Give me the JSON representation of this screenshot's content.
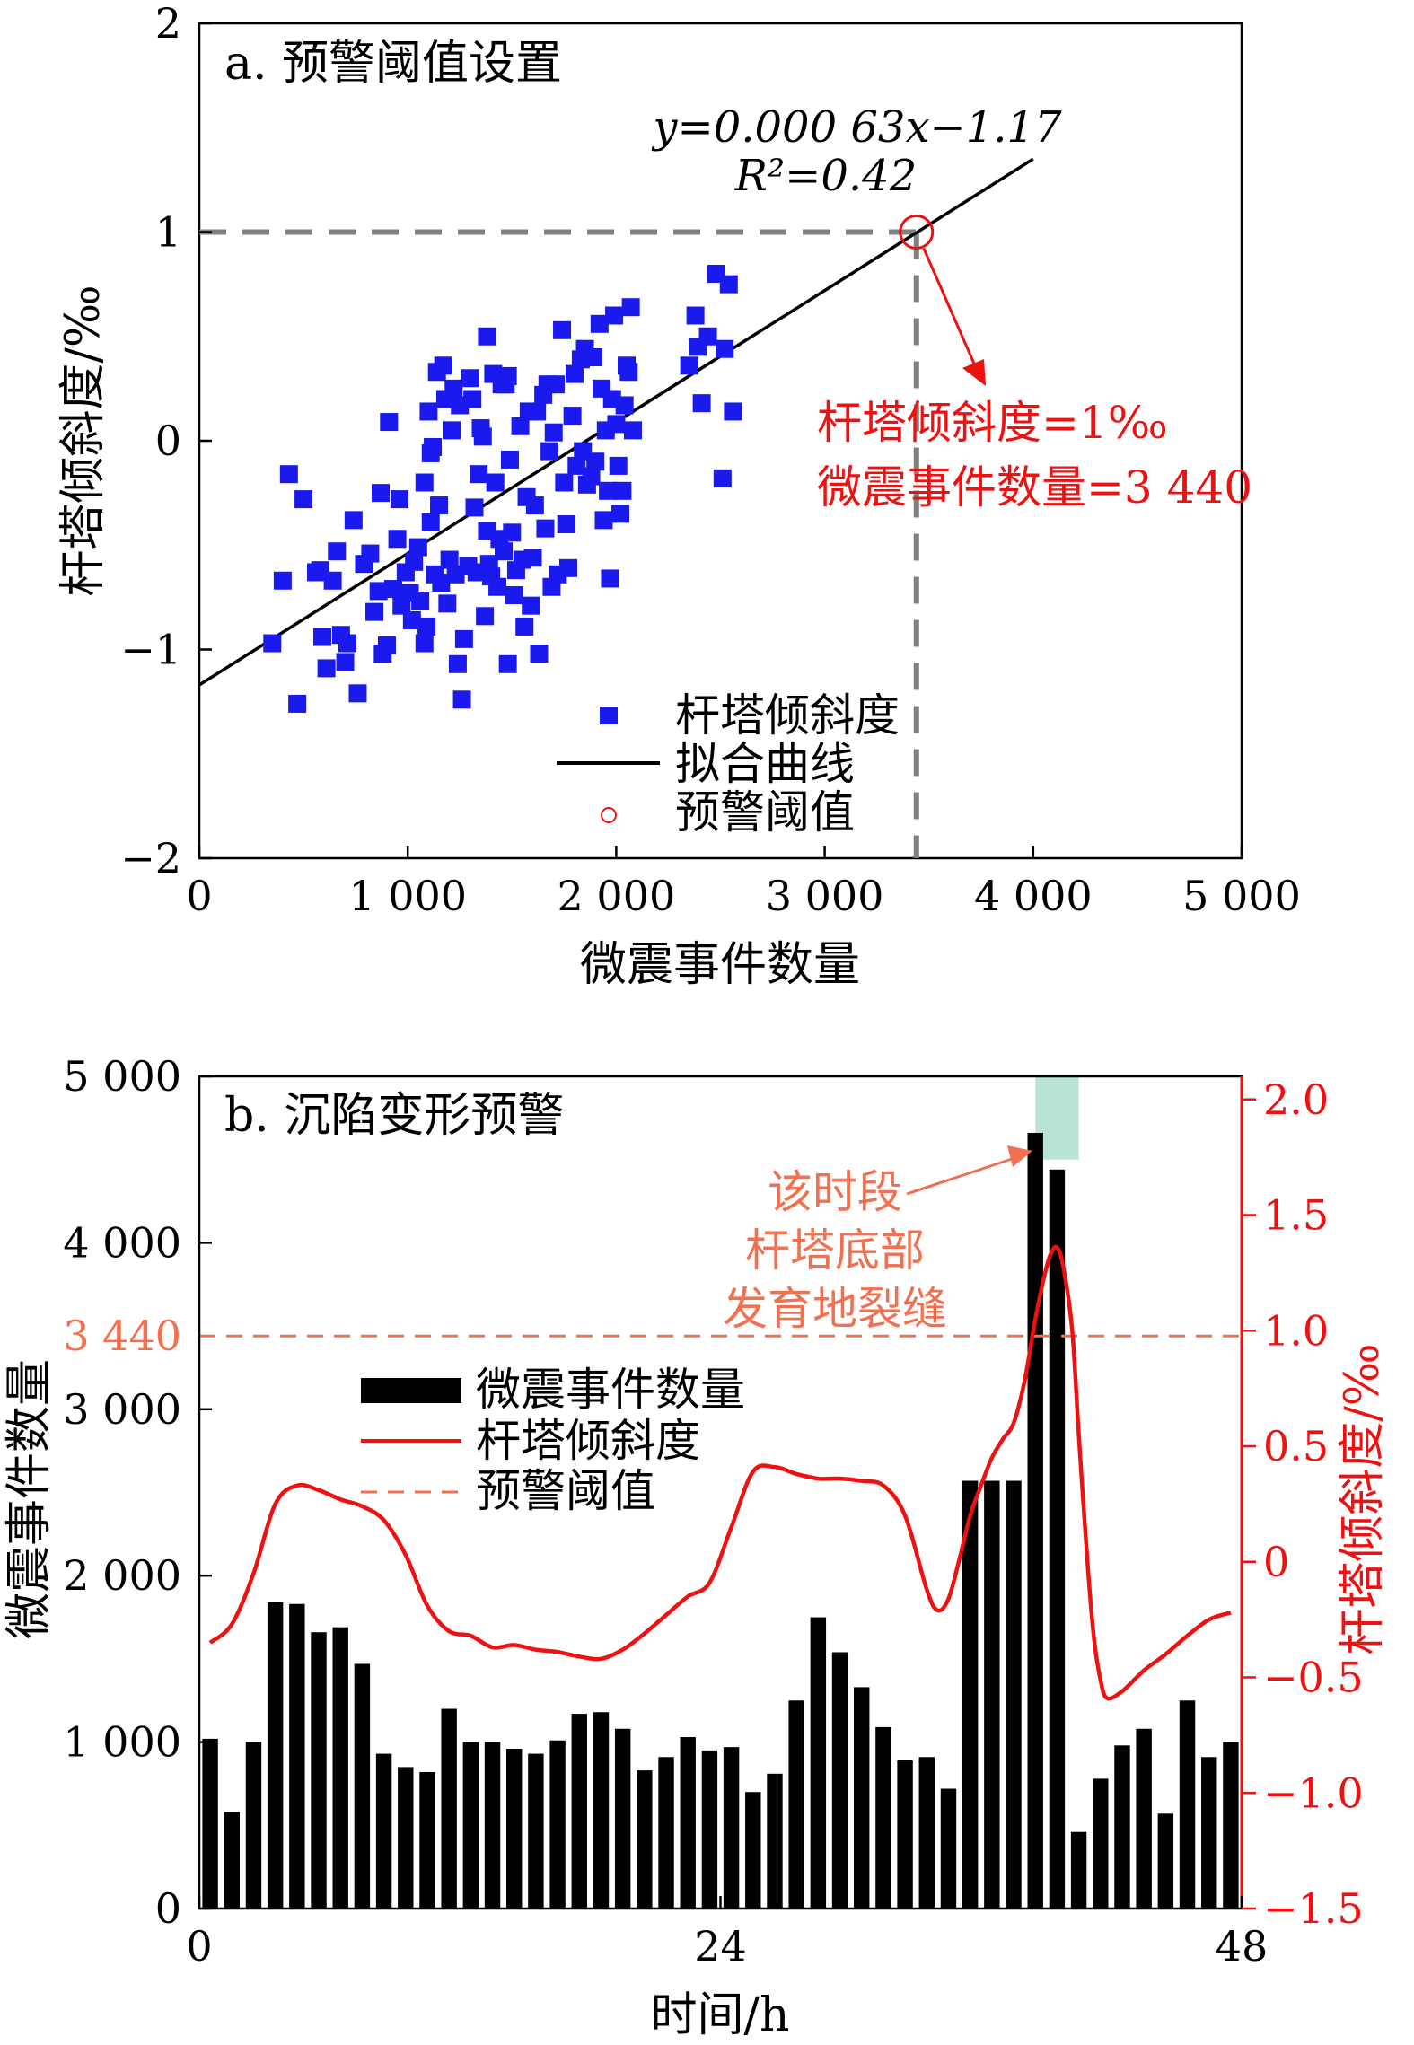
{
  "chart_data": [
    {
      "type": "scatter",
      "title": "a. 预警阈值设置",
      "xlabel": "微震事件数量",
      "ylabel": "杆塔倾斜度/‰",
      "xlim": [
        0,
        5000
      ],
      "ylim": [
        -2,
        2
      ],
      "xticks": [
        "0",
        "1 000",
        "2 000",
        "3 000",
        "4 000",
        "5 000"
      ],
      "yticks": [
        "−2",
        "−1",
        "0",
        "1",
        "2"
      ],
      "legend": {
        "placement": "bottom-center",
        "entries": [
          "杆塔倾斜度",
          "拟合曲线",
          "预警阈值"
        ]
      },
      "fit": {
        "label": "y=0.000 63x−1.17",
        "r2": "R²=0.42",
        "slope": 0.00063,
        "intercept": -1.17,
        "x_range": [
          0,
          4000
        ]
      },
      "threshold": {
        "x": 3440,
        "y": 1,
        "label_line1": "杆塔倾斜度=1‰",
        "label_line2": "微震事件数量=3 440"
      },
      "colors": {
        "points": "#1a1aee",
        "fit": "#000000",
        "threshold": "#ee1111",
        "guide": "#808080"
      },
      "points": [
        [
          350,
          -0.97
        ],
        [
          400,
          -0.67
        ],
        [
          430,
          -0.16
        ],
        [
          470,
          -1.26
        ],
        [
          500,
          -0.28
        ],
        [
          560,
          -0.63
        ],
        [
          580,
          -0.62
        ],
        [
          590,
          -0.94
        ],
        [
          610,
          -1.09
        ],
        [
          640,
          -0.67
        ],
        [
          660,
          -0.53
        ],
        [
          680,
          -0.93
        ],
        [
          700,
          -1.06
        ],
        [
          710,
          -0.97
        ],
        [
          740,
          -0.38
        ],
        [
          760,
          -1.21
        ],
        [
          790,
          -0.59
        ],
        [
          820,
          -0.54
        ],
        [
          840,
          -0.82
        ],
        [
          860,
          -0.72
        ],
        [
          870,
          -0.25
        ],
        [
          880,
          -1.02
        ],
        [
          900,
          -0.98
        ],
        [
          910,
          0.09
        ],
        [
          930,
          -0.71
        ],
        [
          950,
          -0.47
        ],
        [
          960,
          -0.28
        ],
        [
          970,
          -0.79
        ],
        [
          990,
          -0.63
        ],
        [
          1010,
          -0.73
        ],
        [
          1020,
          -0.86
        ],
        [
          1030,
          -0.58
        ],
        [
          1050,
          -0.51
        ],
        [
          1060,
          -0.77
        ],
        [
          1080,
          -0.97
        ],
        [
          1080,
          -0.2
        ],
        [
          1090,
          -0.89
        ],
        [
          1100,
          0.14
        ],
        [
          1110,
          -0.06
        ],
        [
          1110,
          -0.39
        ],
        [
          1120,
          -0.03
        ],
        [
          1130,
          -0.64
        ],
        [
          1140,
          0.33
        ],
        [
          1150,
          -0.31
        ],
        [
          1160,
          -0.68
        ],
        [
          1170,
          0.36
        ],
        [
          1180,
          0.2
        ],
        [
          1190,
          -0.78
        ],
        [
          1200,
          -0.57
        ],
        [
          1210,
          0.05
        ],
        [
          1220,
          0.25
        ],
        [
          1230,
          -0.64
        ],
        [
          1240,
          -1.07
        ],
        [
          1250,
          0.17
        ],
        [
          1260,
          -1.24
        ],
        [
          1270,
          -0.95
        ],
        [
          1290,
          -0.6
        ],
        [
          1300,
          0.3
        ],
        [
          1310,
          0.2
        ],
        [
          1320,
          -0.32
        ],
        [
          1330,
          -0.63
        ],
        [
          1340,
          -0.16
        ],
        [
          1350,
          0.06
        ],
        [
          1360,
          0.02
        ],
        [
          1370,
          -0.84
        ],
        [
          1380,
          -0.43
        ],
        [
          1380,
          0.5
        ],
        [
          1390,
          -0.59
        ],
        [
          1400,
          -0.65
        ],
        [
          1410,
          0.32
        ],
        [
          1420,
          -0.2
        ],
        [
          1430,
          -0.7
        ],
        [
          1440,
          -0.47
        ],
        [
          1450,
          0.27
        ],
        [
          1460,
          -0.53
        ],
        [
          1470,
          0.27
        ],
        [
          1480,
          -1.07
        ],
        [
          1480,
          0.31
        ],
        [
          1490,
          -0.09
        ],
        [
          1500,
          -0.44
        ],
        [
          1510,
          -0.74
        ],
        [
          1520,
          -0.62
        ],
        [
          1540,
          0.07
        ],
        [
          1550,
          -0.57
        ],
        [
          1560,
          -0.89
        ],
        [
          1570,
          -0.27
        ],
        [
          1580,
          0.14
        ],
        [
          1590,
          -0.79
        ],
        [
          1600,
          -0.56
        ],
        [
          1610,
          -0.31
        ],
        [
          1620,
          0.14
        ],
        [
          1630,
          -1.02
        ],
        [
          1650,
          0.22
        ],
        [
          1660,
          -0.42
        ],
        [
          1670,
          0.27
        ],
        [
          1680,
          -0.05
        ],
        [
          1690,
          -0.7
        ],
        [
          1700,
          0.04
        ],
        [
          1710,
          0.27
        ],
        [
          1720,
          -0.64
        ],
        [
          1740,
          0.53
        ],
        [
          1750,
          -0.2
        ],
        [
          1760,
          -0.4
        ],
        [
          1770,
          -0.61
        ],
        [
          1790,
          0.12
        ],
        [
          1800,
          0.32
        ],
        [
          1810,
          -0.12
        ],
        [
          1830,
          0.39
        ],
        [
          1840,
          -0.05
        ],
        [
          1850,
          0.44
        ],
        [
          1860,
          -0.21
        ],
        [
          1880,
          -0.17
        ],
        [
          1890,
          0.4
        ],
        [
          1900,
          -0.1
        ],
        [
          1920,
          0.56
        ],
        [
          1930,
          0.25
        ],
        [
          1940,
          -0.38
        ],
        [
          1950,
          0.05
        ],
        [
          1960,
          -0.24
        ],
        [
          1970,
          -0.66
        ],
        [
          1980,
          0.2
        ],
        [
          1990,
          0.6
        ],
        [
          2000,
          0.08
        ],
        [
          2010,
          -0.12
        ],
        [
          2020,
          -0.35
        ],
        [
          2030,
          -0.24
        ],
        [
          2040,
          0.17
        ],
        [
          2050,
          0.36
        ],
        [
          2060,
          0.33
        ],
        [
          2070,
          0.64
        ],
        [
          2080,
          0.05
        ],
        [
          2350,
          0.36
        ],
        [
          2380,
          0.6
        ],
        [
          2390,
          0.45
        ],
        [
          2410,
          0.18
        ],
        [
          2440,
          0.5
        ],
        [
          2480,
          0.8
        ],
        [
          2510,
          -0.18
        ],
        [
          2520,
          0.44
        ],
        [
          2540,
          0.75
        ],
        [
          2560,
          0.14
        ]
      ]
    },
    {
      "type": "bar",
      "title": "b. 沉陷变形预警",
      "xlabel": "时间/h",
      "ylabel_left": "微震事件数量",
      "ylabel_right": "杆塔倾斜度/‰",
      "xlim": [
        0,
        48
      ],
      "ylim_left": [
        0,
        5000
      ],
      "ylim_right": [
        -1.5,
        2.1
      ],
      "xticks": [
        "0",
        "24",
        "48"
      ],
      "yticks_left": [
        "0",
        "1 000",
        "2 000",
        "3 000",
        "4 000",
        "5 000"
      ],
      "yticks_right": [
        "−1.5",
        "−1.0",
        "−0.5",
        "0",
        "0.5",
        "1.0",
        "1.5",
        "2.0"
      ],
      "threshold": {
        "value": 3440,
        "label": "3 440",
        "right_value": 1.0
      },
      "highlight": {
        "x_range": [
          38.5,
          40.5
        ]
      },
      "annotation": [
        "该时段",
        "杆塔底部",
        "发育地裂缝"
      ],
      "legend": {
        "placement": "center-left",
        "entries": [
          "微震事件数量",
          "杆塔倾斜度",
          "预警阈值"
        ]
      },
      "colors": {
        "bars": "#000000",
        "tilt": "#ee1111",
        "threshold": "#f07050",
        "highlight": "#a8dcc8",
        "annotation": "#f07050"
      },
      "bar_x": [
        1,
        2,
        3,
        4,
        5,
        6,
        7,
        8,
        9,
        10,
        11,
        12,
        13,
        14,
        15,
        16,
        17,
        18,
        19,
        20,
        21,
        22,
        23,
        24,
        25,
        26,
        27,
        28,
        29,
        30,
        31,
        32,
        33,
        34,
        35,
        36,
        37,
        38,
        39,
        40,
        41,
        42,
        43,
        44,
        45,
        46,
        47,
        48
      ],
      "bar_values": [
        1020,
        580,
        1000,
        1840,
        1830,
        1660,
        1690,
        1470,
        930,
        850,
        820,
        1200,
        1000,
        1000,
        960,
        930,
        1010,
        1170,
        1180,
        1080,
        830,
        910,
        1030,
        950,
        970,
        700,
        810,
        1250,
        1750,
        1540,
        1330,
        1090,
        890,
        910,
        720,
        2570,
        2570,
        2570,
        4660,
        4440,
        460,
        780,
        980,
        1080,
        570,
        1250,
        910,
        1000
      ],
      "tilt_curve": [
        [
          1,
          -0.35
        ],
        [
          2,
          -0.27
        ],
        [
          3,
          -0.05
        ],
        [
          4,
          0.25
        ],
        [
          5,
          0.33
        ],
        [
          6,
          0.31
        ],
        [
          7,
          0.27
        ],
        [
          8,
          0.24
        ],
        [
          9,
          0.18
        ],
        [
          10,
          0.03
        ],
        [
          11,
          -0.19
        ],
        [
          12,
          -0.3
        ],
        [
          13,
          -0.32
        ],
        [
          14,
          -0.37
        ],
        [
          15,
          -0.36
        ],
        [
          16,
          -0.38
        ],
        [
          17,
          -0.39
        ],
        [
          18,
          -0.41
        ],
        [
          19,
          -0.42
        ],
        [
          20,
          -0.38
        ],
        [
          21,
          -0.31
        ],
        [
          22,
          -0.23
        ],
        [
          23,
          -0.15
        ],
        [
          24,
          -0.09
        ],
        [
          25,
          0.15
        ],
        [
          26,
          0.39
        ],
        [
          27,
          0.41
        ],
        [
          28,
          0.38
        ],
        [
          29,
          0.36
        ],
        [
          30,
          0.36
        ],
        [
          31,
          0.35
        ],
        [
          32,
          0.33
        ],
        [
          33,
          0.2
        ],
        [
          34,
          -0.12
        ],
        [
          34.5,
          -0.21
        ],
        [
          35,
          -0.16
        ],
        [
          35.5,
          0.01
        ],
        [
          36,
          0.2
        ],
        [
          36.5,
          0.33
        ],
        [
          37,
          0.45
        ],
        [
          37.5,
          0.53
        ],
        [
          38,
          0.6
        ],
        [
          38.5,
          0.78
        ],
        [
          39,
          1.05
        ],
        [
          39.4,
          1.23
        ],
        [
          39.7,
          1.33
        ],
        [
          40,
          1.36
        ],
        [
          40.3,
          1.27
        ],
        [
          40.7,
          1.0
        ],
        [
          41,
          0.55
        ],
        [
          41.4,
          0.0
        ],
        [
          41.7,
          -0.33
        ],
        [
          42,
          -0.51
        ],
        [
          42.3,
          -0.59
        ],
        [
          43,
          -0.56
        ],
        [
          44,
          -0.47
        ],
        [
          45,
          -0.4
        ],
        [
          46,
          -0.32
        ],
        [
          47,
          -0.25
        ],
        [
          48,
          -0.22
        ]
      ]
    }
  ]
}
